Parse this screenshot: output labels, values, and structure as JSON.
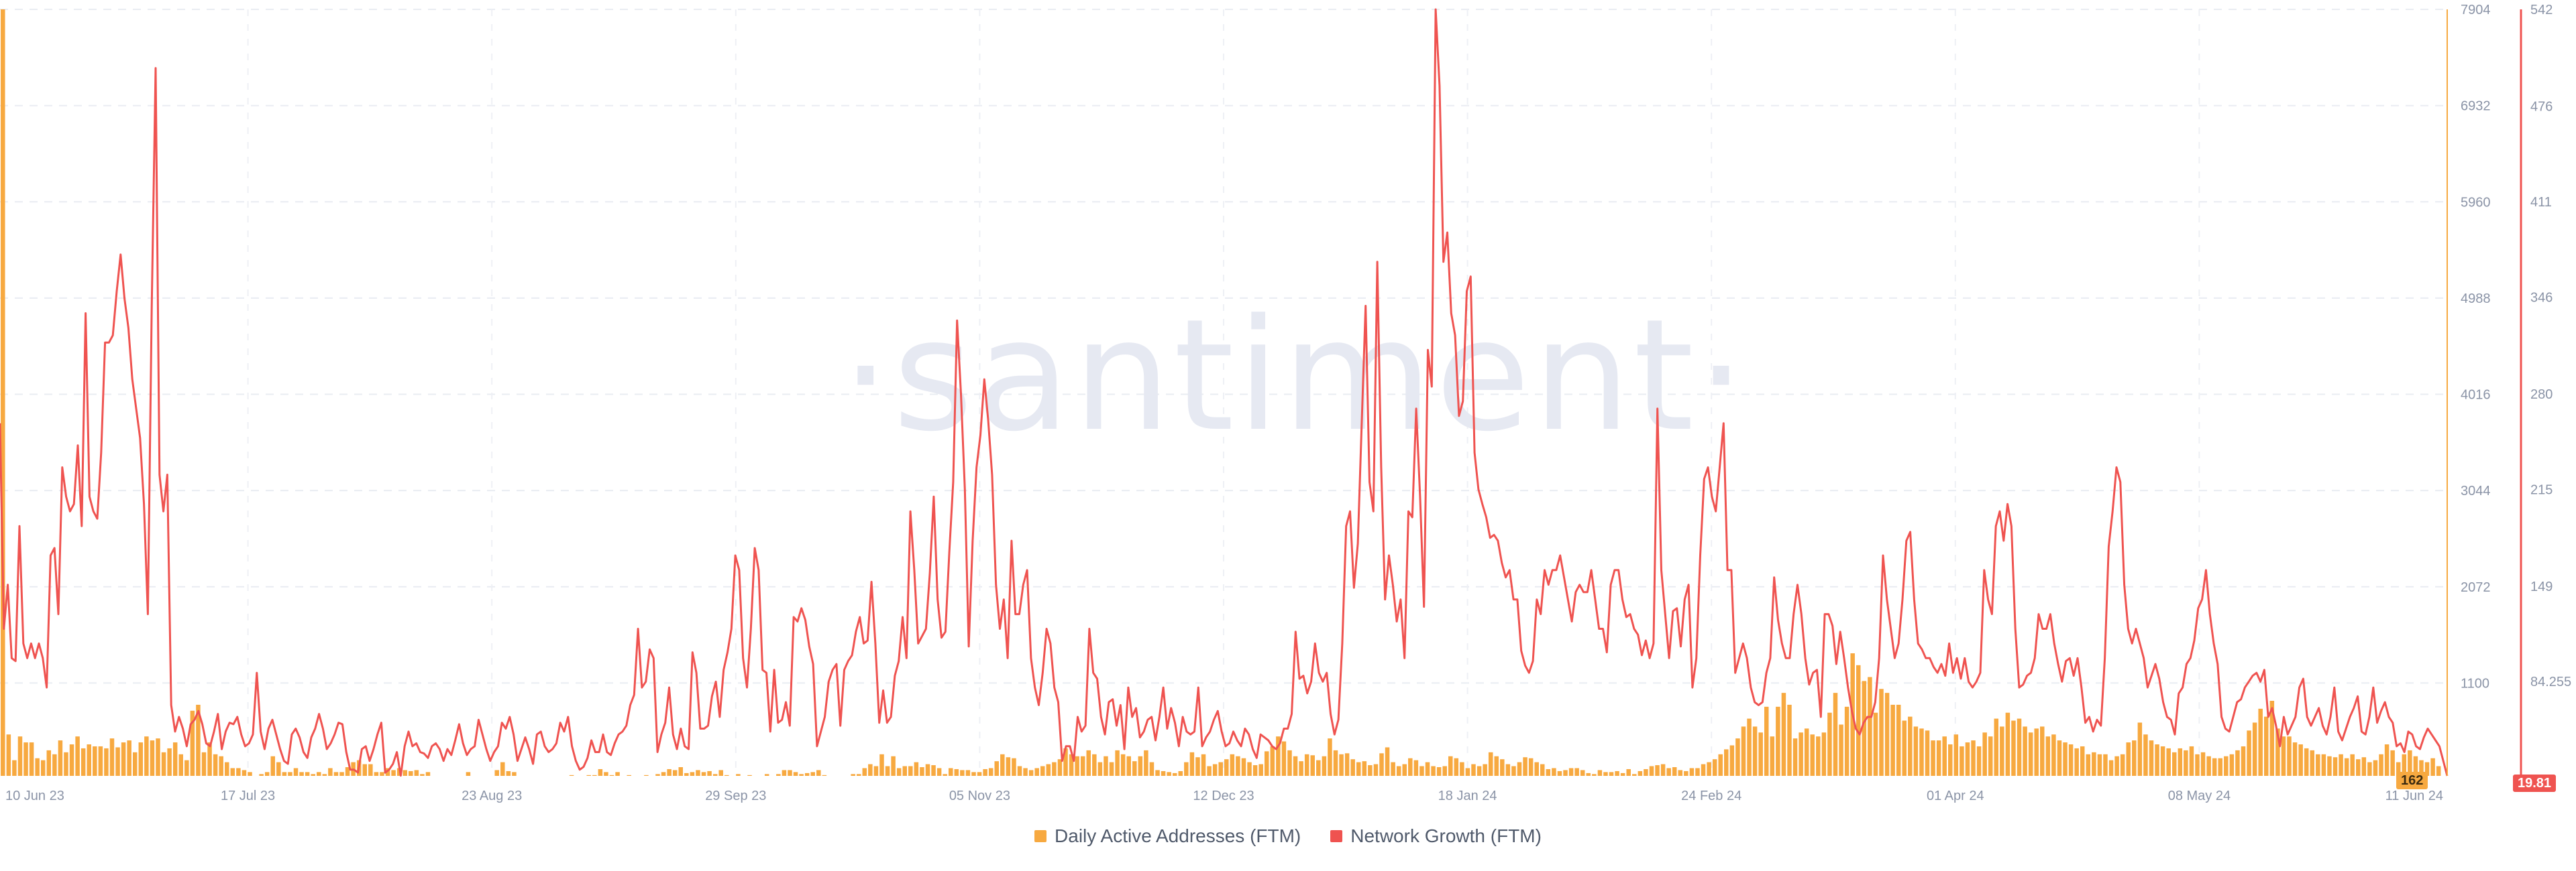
{
  "watermark": "·santiment·",
  "chart_data": {
    "type": "bar+line",
    "title": "",
    "x_labels": [
      "10 Jun 23",
      "17 Jul 23",
      "23 Aug 23",
      "29 Sep 23",
      "05 Nov 23",
      "12 Dec 23",
      "18 Jan 24",
      "24 Feb 24",
      "01 Apr 24",
      "08 May 24",
      "11 Jun 24"
    ],
    "x_range": [
      "10 Jun 23",
      "11 Jun 24"
    ],
    "grid": true,
    "legend_position": "bottom-center",
    "y_left": {
      "ticks": [
        "1100",
        "2072",
        "3044",
        "4016",
        "4988",
        "5960",
        "6932",
        "7904"
      ],
      "range": [
        162,
        7904
      ]
    },
    "y_right": {
      "ticks": [
        "84.255",
        "149",
        "215",
        "280",
        "346",
        "411",
        "476",
        "542"
      ],
      "range": [
        19.81,
        542
      ]
    },
    "last_values": {
      "daily_active_addresses": "162",
      "network_growth": "19.81"
    },
    "series": [
      {
        "name": "Daily Active Addresses (FTM)",
        "type": "bar",
        "axis": "left",
        "color": "#f7a940",
        "values": [
          7904,
          580,
          320,
          560,
          500,
          500,
          340,
          320,
          420,
          380,
          520,
          400,
          480,
          560,
          440,
          480,
          460,
          460,
          440,
          540,
          450,
          500,
          520,
          400,
          500,
          560,
          520,
          540,
          400,
          440,
          500,
          380,
          320,
          820,
          880,
          400,
          500,
          380,
          360,
          300,
          240,
          240,
          220,
          200,
          160,
          180,
          200,
          360,
          300,
          200,
          200,
          240,
          200,
          200,
          180,
          200,
          180,
          240,
          200,
          200,
          250,
          300,
          320,
          280,
          280,
          200,
          200,
          240,
          220,
          240,
          220,
          210,
          220,
          180,
          200,
          140,
          140,
          140,
          140,
          160,
          160,
          200,
          130,
          160,
          120,
          160,
          220,
          300,
          210,
          200,
          160,
          160,
          160,
          140,
          150,
          140,
          140,
          150,
          160,
          170,
          130,
          150,
          170,
          170,
          230,
          200,
          170,
          200,
          160,
          170,
          160,
          140,
          170,
          160,
          180,
          200,
          230,
          220,
          250,
          190,
          200,
          220,
          200,
          210,
          180,
          220,
          170,
          160,
          180,
          150,
          170,
          140,
          160,
          180,
          150,
          180,
          220,
          220,
          200,
          180,
          190,
          200,
          220,
          170,
          150,
          140,
          150,
          160,
          180,
          180,
          240,
          280,
          260,
          380,
          260,
          360,
          240,
          260,
          260,
          300,
          250,
          280,
          270,
          240,
          180,
          240,
          230,
          220,
          220,
          200,
          200,
          230,
          240,
          310,
          380,
          350,
          340,
          260,
          240,
          220,
          240,
          260,
          280,
          300,
          330,
          440,
          380,
          360,
          360,
          420,
          380,
          300,
          360,
          300,
          420,
          380,
          360,
          310,
          360,
          420,
          300,
          220,
          210,
          200,
          190,
          210,
          300,
          400,
          350,
          380,
          260,
          280,
          300,
          330,
          380,
          360,
          340,
          300,
          270,
          280,
          410,
          460,
          560,
          510,
          420,
          360,
          310,
          380,
          370,
          320,
          360,
          540,
          420,
          380,
          390,
          330,
          300,
          310,
          270,
          280,
          390,
          450,
          300,
          260,
          280,
          340,
          320,
          260,
          300,
          260,
          250,
          260,
          360,
          340,
          300,
          240,
          280,
          260,
          280,
          400,
          360,
          330,
          280,
          260,
          300,
          350,
          340,
          300,
          280,
          230,
          240,
          210,
          220,
          240,
          240,
          220,
          190,
          180,
          220,
          200,
          200,
          210,
          190,
          230,
          180,
          210,
          230,
          260,
          270,
          280,
          240,
          250,
          220,
          210,
          240,
          240,
          280,
          300,
          330,
          380,
          430,
          470,
          540,
          660,
          740,
          660,
          600,
          860,
          560,
          860,
          1000,
          880,
          540,
          600,
          640,
          580,
          560,
          600,
          800,
          1000,
          680,
          860,
          1400,
          1280,
          1120,
          1160,
          800,
          1040,
          1000,
          880,
          880,
          720,
          760,
          660,
          640,
          620,
          520,
          520,
          560,
          480,
          580,
          460,
          500,
          520,
          460,
          600,
          560,
          740,
          660,
          800,
          720,
          740,
          660,
          600,
          640,
          660,
          560,
          580,
          520,
          500,
          480,
          440,
          460,
          380,
          400,
          380,
          380,
          320,
          360,
          380,
          500,
          520,
          700,
          580,
          520,
          480,
          460,
          440,
          400,
          440,
          420,
          460,
          380,
          400,
          360,
          340,
          340,
          360,
          380,
          420,
          460,
          620,
          700,
          840,
          760,
          920,
          640,
          560,
          560,
          500,
          480,
          440,
          420,
          380,
          380,
          360,
          350,
          380,
          340,
          380,
          330,
          350,
          300,
          320,
          380,
          480,
          420,
          300,
          380,
          420,
          360,
          320,
          300,
          340,
          260,
          162
        ]
      },
      {
        "name": "Network Growth (FTM)",
        "type": "line",
        "axis": "right",
        "color": "#ef5350",
        "values": [
          260,
          120,
          150,
          100,
          98,
          190,
          110,
          100,
          110,
          100,
          110,
          100,
          80,
          170,
          175,
          130,
          230,
          210,
          200,
          205,
          245,
          190,
          335,
          210,
          200,
          195,
          240,
          315,
          315,
          320,
          350,
          375,
          345,
          325,
          290,
          270,
          250,
          205,
          130,
          340,
          502,
          225,
          200,
          225,
          68,
          50,
          60,
          52,
          40,
          55,
          58,
          64,
          55,
          42,
          40,
          50,
          62,
          38,
          50,
          56,
          55,
          60,
          48,
          40,
          42,
          48,
          90,
          50,
          38,
          52,
          58,
          48,
          38,
          30,
          28,
          48,
          52,
          46,
          36,
          32,
          46,
          52,
          62,
          52,
          38,
          42,
          48,
          56,
          55,
          36,
          24,
          24,
          22,
          38,
          40,
          30,
          38,
          48,
          56,
          22,
          24,
          28,
          36,
          20,
          40,
          50,
          40,
          42,
          36,
          35,
          32,
          40,
          42,
          38,
          30,
          38,
          34,
          44,
          55,
          42,
          34,
          38,
          40,
          58,
          48,
          38,
          30,
          36,
          40,
          56,
          52,
          60,
          48,
          30,
          38,
          46,
          38,
          28,
          48,
          50,
          40,
          36,
          38,
          42,
          56,
          50,
          60,
          40,
          30,
          24,
          26,
          32,
          44,
          36,
          36,
          48,
          36,
          34,
          42,
          48,
          50,
          54,
          68,
          75,
          120,
          80,
          84,
          106,
          100,
          36,
          48,
          56,
          80,
          48,
          38,
          52,
          40,
          38,
          104,
          90,
          52,
          52,
          54,
          74,
          84,
          60,
          92,
          104,
          120,
          170,
          160,
          100,
          80,
          120,
          175,
          160,
          92,
          90,
          50,
          92,
          56,
          58,
          70,
          54,
          128,
          125,
          134,
          126,
          108,
          96,
          40,
          50,
          60,
          84,
          92,
          96,
          54,
          92,
          98,
          102,
          118,
          128,
          110,
          112,
          152,
          110,
          56,
          78,
          56,
          60,
          88,
          98,
          128,
          100,
          200,
          160,
          110,
          115,
          120,
          158,
          210,
          140,
          114,
          118,
          172,
          220,
          330,
          280,
          215,
          108,
          180,
          230,
          252,
          290,
          262,
          225,
          150,
          120,
          140,
          100,
          180,
          130,
          130,
          150,
          160,
          100,
          80,
          68,
          90,
          120,
          110,
          80,
          70,
          30,
          40,
          40,
          30,
          60,
          50,
          54,
          120,
          90,
          86,
          60,
          48,
          70,
          72,
          54,
          68,
          38,
          80,
          60,
          66,
          46,
          50,
          58,
          60,
          44,
          60,
          80,
          52,
          66,
          56,
          40,
          60,
          50,
          48,
          50,
          80,
          40,
          46,
          50,
          58,
          64,
          50,
          40,
          42,
          50,
          44,
          40,
          52,
          48,
          38,
          32,
          48,
          46,
          44,
          40,
          38,
          42,
          52,
          52,
          62,
          118,
          86,
          88,
          76,
          84,
          110,
          90,
          84,
          90,
          62,
          48,
          58,
          110,
          190,
          200,
          148,
          178,
          260,
          340,
          220,
          200,
          370,
          230,
          140,
          170,
          150,
          125,
          140,
          100,
          200,
          196,
          270,
          210,
          135,
          310,
          285,
          542,
          490,
          370,
          390,
          335,
          320,
          265,
          275,
          350,
          360,
          240,
          215,
          205,
          196,
          182,
          184,
          180,
          165,
          155,
          160,
          140,
          140,
          105,
          95,
          90,
          98,
          140,
          130,
          160,
          150,
          160,
          160,
          170,
          155,
          140,
          125,
          145,
          150,
          145,
          145,
          160,
          140,
          120,
          120,
          104,
          150,
          160,
          160,
          140,
          128,
          130,
          120,
          116,
          102,
          112,
          100,
          110,
          270,
          160,
          130,
          100,
          132,
          134,
          108,
          140,
          150,
          80,
          100,
          170,
          222,
          230,
          210,
          200,
          230,
          260,
          160,
          160,
          90,
          100,
          110,
          100,
          80,
          70,
          68,
          70,
          90,
          100,
          155,
          126,
          110,
          100,
          100,
          130,
          150,
          130,
          100,
          82,
          90,
          92,
          60,
          130,
          130,
          122,
          96,
          118,
          100,
          80,
          64,
          52,
          48,
          56,
          60,
          60,
          70,
          100,
          170,
          140,
          120,
          100,
          110,
          140,
          180,
          186,
          140,
          110,
          106,
          100,
          100,
          94,
          90,
          96,
          88,
          110,
          90,
          100,
          86,
          100,
          84,
          80,
          84,
          90,
          160,
          140,
          130,
          190,
          200,
          180,
          205,
          190,
          120,
          80,
          82,
          88,
          90,
          100,
          130,
          120,
          120,
          130,
          110,
          96,
          84,
          98,
          100,
          88,
          100,
          80,
          56,
          60,
          50,
          58,
          54,
          100,
          176,
          200,
          230,
          220,
          150,
          120,
          110,
          120,
          110,
          100,
          80,
          88,
          96,
          86,
          70,
          60,
          58,
          48,
          76,
          80,
          96,
          100,
          112,
          134,
          140,
          160,
          130,
          110,
          96,
          60,
          52,
          50,
          60,
          70,
          72,
          80,
          84,
          88,
          90,
          84,
          92,
          60,
          66,
          54,
          40,
          60,
          48,
          54,
          60,
          80,
          86,
          60,
          54,
          60,
          66,
          54,
          48,
          60,
          80,
          50,
          44,
          52,
          60,
          66,
          74,
          50,
          48,
          60,
          80,
          56,
          64,
          70,
          60,
          56,
          40,
          42,
          36,
          50,
          48,
          40,
          38,
          46,
          52,
          48,
          44,
          40,
          30,
          19.81
        ]
      }
    ]
  },
  "legend": {
    "items": [
      {
        "label": "Daily Active Addresses (FTM)",
        "color": "#f7a940"
      },
      {
        "label": "Network Growth (FTM)",
        "color": "#ef5350"
      }
    ]
  }
}
